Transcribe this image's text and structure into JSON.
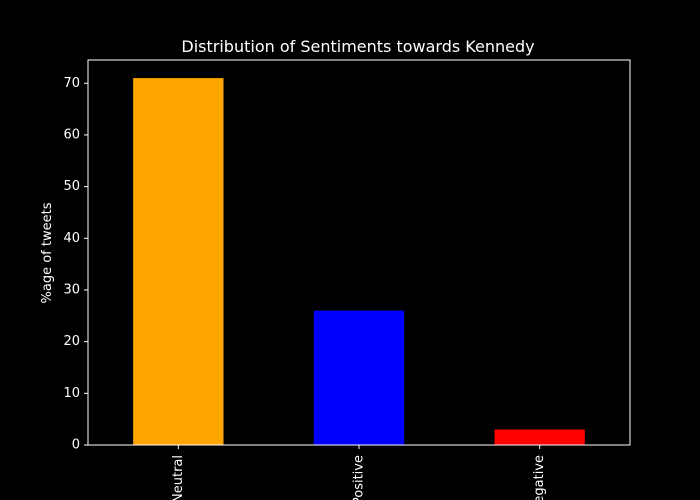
{
  "chart_data": {
    "type": "bar",
    "title": "Distribution of Sentiments towards Kennedy",
    "xlabel": "",
    "ylabel": "%age of tweets",
    "categories": [
      "Neutral",
      "Positive",
      "Negative"
    ],
    "values": [
      71,
      26,
      3
    ],
    "colors": [
      "#ffa500",
      "#0000ff",
      "#ff0000"
    ],
    "ylim": [
      0,
      74.5
    ],
    "yticks": [
      0,
      10,
      20,
      30,
      40,
      50,
      60,
      70
    ],
    "background": "#000000",
    "foreground": "#ffffff",
    "grid": false,
    "legend": "none"
  }
}
